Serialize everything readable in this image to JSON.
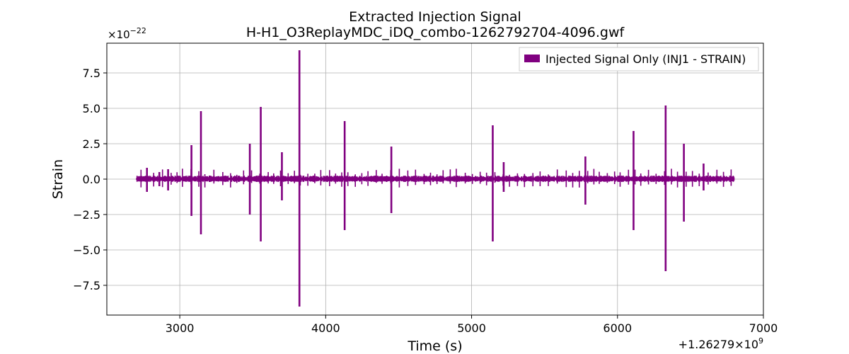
{
  "chart_data": {
    "type": "line",
    "title": "Extracted Injection Signal",
    "subtitle": "H-H1_O3ReplayMDC_iDQ_combo-1262792704-4096.gwf",
    "xlabel": "Time (s)",
    "ylabel": "Strain",
    "x_offset_label": "+1.26279×10",
    "x_offset_exp": "9",
    "y_multiplier_label": "×10",
    "y_multiplier_exp": "−22",
    "xlim": [
      2500,
      7000
    ],
    "ylim": [
      -9.6,
      9.6
    ],
    "x_ticks": [
      3000,
      4000,
      5000,
      6000,
      7000
    ],
    "x_tick_labels": [
      "3000",
      "4000",
      "5000",
      "6000",
      "7000"
    ],
    "y_ticks": [
      -7.5,
      -5.0,
      -2.5,
      0.0,
      2.5,
      5.0,
      7.5
    ],
    "y_tick_labels": [
      "−7.5",
      "−5.0",
      "−2.5",
      "0.0",
      "2.5",
      "5.0",
      "7.5"
    ],
    "grid": true,
    "legend_position": "top-right",
    "series": [
      {
        "name": "Injected Signal Only (INJ1 - STRAIN)",
        "color": "#800080",
        "time_range": [
          2704,
          6800
        ],
        "baseline_amplitude": 0.25,
        "spikes": [
          {
            "x": 2775,
            "ymax": 0.8,
            "ymin": -0.9
          },
          {
            "x": 2860,
            "ymax": 0.5,
            "ymin": -0.5
          },
          {
            "x": 2920,
            "ymax": 0.7,
            "ymin": -0.8
          },
          {
            "x": 3080,
            "ymax": 2.4,
            "ymin": -2.6
          },
          {
            "x": 3145,
            "ymax": 4.8,
            "ymin": -3.9
          },
          {
            "x": 3480,
            "ymax": 2.5,
            "ymin": -2.5
          },
          {
            "x": 3555,
            "ymax": 5.1,
            "ymin": -4.4
          },
          {
            "x": 3700,
            "ymax": 1.9,
            "ymin": -1.5
          },
          {
            "x": 3820,
            "ymax": 9.1,
            "ymin": -9.0
          },
          {
            "x": 4130,
            "ymax": 4.1,
            "ymin": -3.6
          },
          {
            "x": 4450,
            "ymax": 2.3,
            "ymin": -2.4
          },
          {
            "x": 5145,
            "ymax": 3.8,
            "ymin": -4.4
          },
          {
            "x": 5220,
            "ymax": 1.2,
            "ymin": -0.9
          },
          {
            "x": 5780,
            "ymax": 1.6,
            "ymin": -1.8
          },
          {
            "x": 6110,
            "ymax": 3.4,
            "ymin": -3.6
          },
          {
            "x": 6330,
            "ymax": 5.2,
            "ymin": -6.5
          },
          {
            "x": 6455,
            "ymax": 2.5,
            "ymin": -3.0
          },
          {
            "x": 6590,
            "ymax": 1.1,
            "ymin": -0.8
          }
        ]
      }
    ]
  }
}
